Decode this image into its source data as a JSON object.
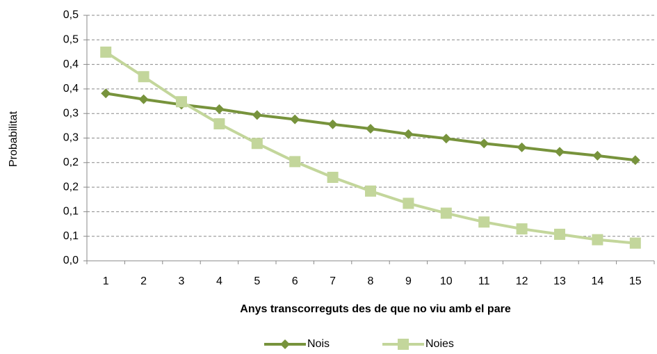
{
  "chart_data": {
    "type": "line",
    "y_label": "Probabilitat",
    "x_label": "Anys transcorreguts des de que no viu amb el pare",
    "categories": [
      "1",
      "2",
      "3",
      "4",
      "5",
      "6",
      "7",
      "8",
      "9",
      "10",
      "11",
      "12",
      "13",
      "14",
      "15"
    ],
    "series": [
      {
        "name": "Nois",
        "color": "#77933c",
        "marker": "diamond",
        "values": [
          0.341,
          0.329,
          0.318,
          0.309,
          0.297,
          0.288,
          0.278,
          0.269,
          0.258,
          0.249,
          0.239,
          0.231,
          0.222,
          0.214,
          0.205
        ]
      },
      {
        "name": "Noies",
        "color": "#c3d69b",
        "marker": "square",
        "values": [
          0.425,
          0.375,
          0.324,
          0.279,
          0.239,
          0.202,
          0.17,
          0.142,
          0.117,
          0.097,
          0.079,
          0.065,
          0.054,
          0.043,
          0.036
        ]
      }
    ],
    "ylim": [
      0,
      0.5
    ],
    "yticks": [
      {
        "value": 0,
        "label": "0,0"
      },
      {
        "value": 0.05,
        "label": "0,1"
      },
      {
        "value": 0.1,
        "label": "0,1"
      },
      {
        "value": 0.15,
        "label": "0,2"
      },
      {
        "value": 0.2,
        "label": "0,2"
      },
      {
        "value": 0.25,
        "label": "0,3"
      },
      {
        "value": 0.3,
        "label": "0,3"
      },
      {
        "value": 0.35,
        "label": "0,4"
      },
      {
        "value": 0.4,
        "label": "0,4"
      },
      {
        "value": 0.45,
        "label": "0,5"
      },
      {
        "value": 0.5,
        "label": "0,5"
      }
    ],
    "grid": true,
    "legend": "bottom"
  }
}
